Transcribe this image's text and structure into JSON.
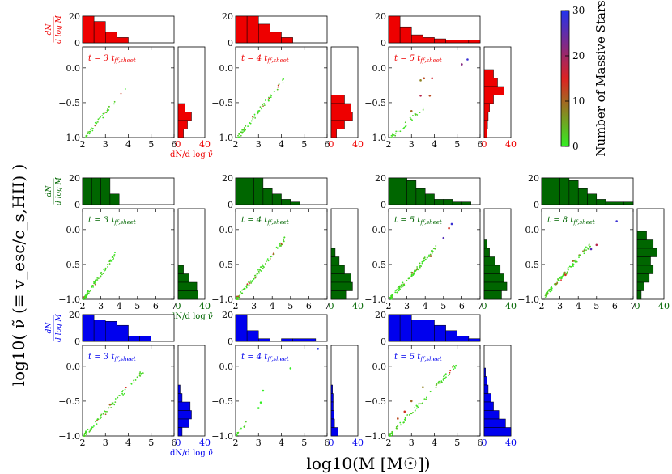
{
  "figure": {
    "ylabel": "log10( ν̃ (≡ v_esc/c_s,HII) )",
    "xlabel": "log10(M [M☉])",
    "colorbar": {
      "label": "Number of Massive Stars",
      "ticks": [
        0,
        10,
        20,
        30
      ],
      "range": [
        0,
        30
      ],
      "colors": [
        "#33ee22",
        "#dd2222",
        "#2233ee"
      ]
    },
    "hist_ylabel_mass": "dN / d log M",
    "hist_xlabel_vel": "dN/d log ν̃"
  },
  "chart_data": [
    {
      "type": "scatter",
      "row": 0,
      "col": 0,
      "color": "#ee0000",
      "panel_label": "t = 3 t_ff,sheet",
      "t": "t = 3",
      "tsub": "ff,sheet",
      "xlim": [
        2,
        6
      ],
      "ylim": [
        -1.0,
        0.3
      ],
      "xticks": [
        2,
        3,
        4,
        5,
        6
      ],
      "yticks": [
        -1.0,
        -0.5,
        0.0
      ],
      "hist_x": {
        "counts": [
          20,
          16,
          8,
          4,
          0,
          0,
          0,
          0
        ],
        "ylim": [
          0,
          20
        ],
        "yticks": [
          0,
          20
        ]
      },
      "hist_y": {
        "counts": [
          10,
          20,
          14,
          8
        ],
        "xlim": [
          0,
          40
        ],
        "xticks": [
          0,
          40
        ]
      },
      "extent": {
        "x": [
          2.1,
          3.95
        ],
        "y": [
          -1.0,
          -0.27
        ]
      },
      "n": 40,
      "extra": []
    },
    {
      "type": "scatter",
      "row": 0,
      "col": 1,
      "color": "#ee0000",
      "panel_label": "t = 4 t_ff,sheet",
      "t": "t = 4",
      "tsub": "ff,sheet",
      "xlim": [
        2,
        6
      ],
      "ylim": [
        -1.0,
        0.3
      ],
      "xticks": [
        2,
        3,
        4,
        5,
        6
      ],
      "yticks": [
        -1.0,
        -0.5,
        0.0
      ],
      "hist_x": {
        "counts": [
          20,
          20,
          14,
          8,
          4,
          0,
          0,
          0
        ],
        "ylim": [
          0,
          20
        ],
        "yticks": [
          0,
          20
        ]
      },
      "hist_y": {
        "counts": [
          20,
          30,
          32,
          20,
          8
        ],
        "xlim": [
          0,
          40
        ],
        "xticks": [
          0,
          40
        ]
      },
      "extent": {
        "x": [
          2.1,
          4.15
        ],
        "y": [
          -1.0,
          -0.15
        ]
      },
      "n": 65,
      "extra": []
    },
    {
      "type": "scatter",
      "row": 0,
      "col": 2,
      "color": "#ee0000",
      "panel_label": "t = 5 t_ff,sheet",
      "t": "t = 5",
      "tsub": "ff,sheet",
      "xlim": [
        2,
        6
      ],
      "ylim": [
        -1.0,
        0.3
      ],
      "xticks": [
        2,
        3,
        4,
        5,
        6
      ],
      "yticks": [
        -1.0,
        -0.5,
        0.0
      ],
      "hist_x": {
        "counts": [
          20,
          12,
          6,
          4,
          3,
          2,
          2,
          2
        ],
        "ylim": [
          0,
          20
        ],
        "yticks": [
          0,
          20
        ]
      },
      "hist_y": {
        "counts": [
          14,
          20,
          30,
          14,
          8,
          6,
          5,
          4
        ],
        "xlim": [
          0,
          40
        ],
        "xticks": [
          0,
          40
        ]
      },
      "extent": {
        "x": [
          2.1,
          3.6
        ],
        "y": [
          -1.0,
          -0.55
        ]
      },
      "n": 30,
      "extra": [
        [
          3.4,
          -0.18,
          8
        ],
        [
          3.8,
          -0.4,
          12
        ],
        [
          3.55,
          -0.15,
          12
        ],
        [
          3.4,
          -0.4,
          18
        ],
        [
          3.9,
          -0.15,
          16
        ],
        [
          5.2,
          0.05,
          22
        ],
        [
          5.45,
          0.12,
          28
        ],
        [
          3.0,
          -0.62,
          10
        ]
      ]
    },
    {
      "type": "scatter",
      "row": 1,
      "col": 0,
      "color": "#006600",
      "panel_label": "t = 3 t_ff,sheet",
      "t": "t = 3",
      "tsub": "ff,sheet",
      "xlim": [
        2,
        7
      ],
      "ylim": [
        -1.0,
        0.3
      ],
      "xticks": [
        2,
        3,
        4,
        5,
        6,
        7
      ],
      "yticks": [
        -1.0,
        -0.5,
        0.0
      ],
      "hist_x": {
        "counts": [
          20,
          20,
          20,
          8,
          0,
          0,
          0,
          0,
          0,
          0
        ],
        "ylim": [
          0,
          20
        ],
        "yticks": [
          0,
          20
        ]
      },
      "hist_y": {
        "counts": [
          8,
          16,
          28,
          30
        ],
        "xlim": [
          0,
          40
        ],
        "xticks": [
          0,
          40
        ]
      },
      "extent": {
        "x": [
          2.05,
          3.8
        ],
        "y": [
          -1.0,
          -0.35
        ]
      },
      "n": 80,
      "extra": []
    },
    {
      "type": "scatter",
      "row": 1,
      "col": 1,
      "color": "#006600",
      "panel_label": "t = 4 t_ff,sheet",
      "t": "t = 4",
      "tsub": "ff,sheet",
      "xlim": [
        2,
        7
      ],
      "ylim": [
        -1.0,
        0.3
      ],
      "xticks": [
        2,
        3,
        4,
        5,
        6,
        7
      ],
      "yticks": [
        -1.0,
        -0.5,
        0.0
      ],
      "hist_x": {
        "counts": [
          20,
          20,
          20,
          12,
          8,
          4,
          2,
          0,
          0,
          0
        ],
        "ylim": [
          0,
          20
        ],
        "yticks": [
          0,
          20
        ]
      },
      "hist_y": {
        "counts": [
          6,
          12,
          20,
          30,
          32,
          22
        ],
        "xlim": [
          0,
          40
        ],
        "xticks": [
          0,
          40
        ]
      },
      "extent": {
        "x": [
          2.05,
          4.8
        ],
        "y": [
          -1.0,
          -0.1
        ]
      },
      "n": 100,
      "extra": []
    },
    {
      "type": "scatter",
      "row": 1,
      "col": 2,
      "color": "#006600",
      "panel_label": "t = 5 t_ff,sheet",
      "t": "t = 5",
      "tsub": "ff,sheet",
      "xlim": [
        2,
        7
      ],
      "ylim": [
        -1.0,
        0.3
      ],
      "xticks": [
        2,
        3,
        4,
        5,
        6,
        7
      ],
      "yticks": [
        -1.0,
        -0.5,
        0.0
      ],
      "hist_x": {
        "counts": [
          20,
          20,
          18,
          12,
          8,
          4,
          4,
          2,
          2,
          0
        ],
        "ylim": [
          0,
          20
        ],
        "yticks": [
          0,
          20
        ]
      },
      "hist_y": {
        "counts": [
          4,
          8,
          16,
          24,
          30,
          34,
          26
        ],
        "xlim": [
          0,
          40
        ],
        "xticks": [
          0,
          40
        ]
      },
      "extent": {
        "x": [
          2.05,
          4.6
        ],
        "y": [
          -1.0,
          -0.25
        ]
      },
      "n": 100,
      "extra": [
        [
          5.0,
          -0.12,
          26
        ],
        [
          5.45,
          0.08,
          28
        ],
        [
          5.3,
          0.02,
          14
        ],
        [
          4.3,
          -0.38,
          10
        ],
        [
          3.3,
          -0.62,
          10
        ]
      ]
    },
    {
      "type": "scatter",
      "row": 1,
      "col": 3,
      "color": "#006600",
      "panel_label": "t = 8 t_ff,sheet",
      "t": "t = 8",
      "tsub": "ff,sheet",
      "xlim": [
        2,
        7
      ],
      "ylim": [
        -1.0,
        0.3
      ],
      "xticks": [
        2,
        3,
        4,
        5,
        6,
        7
      ],
      "yticks": [
        -1.0,
        -0.5,
        0.0
      ],
      "hist_x": {
        "counts": [
          20,
          20,
          20,
          18,
          12,
          8,
          4,
          2,
          2,
          2
        ],
        "ylim": [
          0,
          20
        ],
        "yticks": [
          0,
          20
        ]
      },
      "hist_y": {
        "counts": [
          14,
          24,
          30,
          20,
          24,
          18,
          10,
          6
        ],
        "xlim": [
          0,
          40
        ],
        "xticks": [
          0,
          40
        ]
      },
      "extent": {
        "x": [
          2.2,
          4.7
        ],
        "y": [
          -0.95,
          -0.2
        ]
      },
      "n": 100,
      "extra": [
        [
          4.7,
          -0.28,
          26
        ],
        [
          5.0,
          -0.22,
          18
        ],
        [
          6.1,
          0.12,
          28
        ],
        [
          3.7,
          -0.45,
          10
        ],
        [
          3.3,
          -0.65,
          14
        ],
        [
          2.8,
          -0.78,
          8
        ]
      ]
    },
    {
      "type": "scatter",
      "row": 2,
      "col": 0,
      "color": "#0000ee",
      "panel_label": "t = 3 t_ff,sheet",
      "t": "t = 3",
      "tsub": "ff,sheet",
      "xlim": [
        2,
        6
      ],
      "ylim": [
        -1.0,
        0.3
      ],
      "xticks": [
        2,
        3,
        4,
        5,
        6
      ],
      "yticks": [
        -1.0,
        -0.5,
        0.0
      ],
      "hist_x": {
        "counts": [
          20,
          16,
          15,
          12,
          4,
          4,
          0,
          0
        ],
        "ylim": [
          0,
          20
        ],
        "yticks": [
          0,
          20
        ]
      },
      "hist_y": {
        "counts": [
          3,
          6,
          18,
          20,
          16,
          6
        ],
        "xlim": [
          0,
          40
        ],
        "xticks": [
          0,
          40
        ]
      },
      "extent": {
        "x": [
          2.05,
          4.7
        ],
        "y": [
          -1.0,
          -0.05
        ]
      },
      "n": 70,
      "extra": [
        [
          3.2,
          -0.55,
          10
        ]
      ]
    },
    {
      "type": "scatter",
      "row": 2,
      "col": 1,
      "color": "#0000ee",
      "panel_label": "t = 4 t_ff,sheet",
      "t": "t = 4",
      "tsub": "ff,sheet",
      "xlim": [
        2,
        6
      ],
      "ylim": [
        -1.0,
        0.3
      ],
      "xticks": [
        2,
        3,
        4,
        5,
        6
      ],
      "yticks": [
        -1.0,
        -0.5,
        0.0
      ],
      "hist_x": {
        "counts": [
          20,
          8,
          2,
          0,
          2,
          2,
          2,
          0
        ],
        "ylim": [
          0,
          20
        ],
        "yticks": [
          0,
          20
        ]
      },
      "hist_y": {
        "counts": [
          2,
          3,
          3,
          4,
          5,
          10
        ],
        "xlim": [
          0,
          40
        ],
        "xticks": [
          0,
          40
        ]
      },
      "extent": {
        "x": [
          2.05,
          2.6
        ],
        "y": [
          -1.0,
          -0.75
        ]
      },
      "n": 12,
      "extra": [
        [
          3.0,
          -0.6,
          0
        ],
        [
          3.1,
          -0.52,
          0
        ],
        [
          3.2,
          -0.35,
          0
        ],
        [
          4.4,
          -0.03,
          0
        ],
        [
          5.6,
          0.25,
          30
        ]
      ]
    },
    {
      "type": "scatter",
      "row": 2,
      "col": 2,
      "color": "#0000ee",
      "panel_label": "t = 5 t_ff,sheet",
      "t": "t = 5",
      "tsub": "ff,sheet",
      "xlim": [
        2,
        6
      ],
      "ylim": [
        -1.0,
        0.3
      ],
      "xticks": [
        2,
        3,
        4,
        5,
        6
      ],
      "yticks": [
        -1.0,
        -0.5,
        0.0
      ],
      "hist_x": {
        "counts": [
          20,
          20,
          16,
          16,
          12,
          8,
          4,
          2
        ],
        "ylim": [
          0,
          20
        ],
        "yticks": [
          0,
          20
        ]
      },
      "hist_y": {
        "counts": [
          2,
          4,
          6,
          10,
          14,
          22,
          32,
          40
        ],
        "xlim": [
          0,
          40
        ],
        "xticks": [
          0,
          40
        ]
      },
      "extent": {
        "x": [
          2.05,
          5.05
        ],
        "y": [
          -1.0,
          0.05
        ]
      },
      "n": 90,
      "extra": [
        [
          2.4,
          -0.75,
          12
        ],
        [
          2.7,
          -0.65,
          14
        ],
        [
          3.0,
          -0.5,
          10
        ],
        [
          3.5,
          -0.3,
          8
        ]
      ]
    }
  ]
}
